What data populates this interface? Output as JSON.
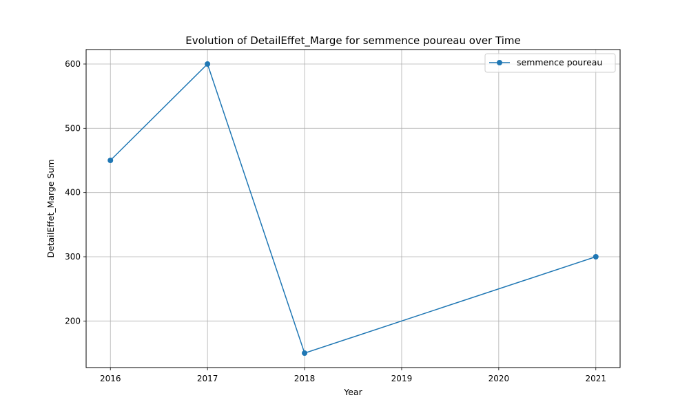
{
  "chart_data": {
    "type": "line",
    "title": "Evolution of DetailEffet_Marge for semmence poureau over Time",
    "xlabel": "Year",
    "ylabel": "DetailEffet_Marge Sum",
    "x": [
      2016,
      2017,
      2018,
      2021
    ],
    "xticks": [
      "2016",
      "2017",
      "2018",
      "2019",
      "2020",
      "2021"
    ],
    "yticks": [
      "200",
      "300",
      "400",
      "500",
      "600"
    ],
    "xlim": [
      2015.75,
      2021.25
    ],
    "ylim": [
      127.5,
      622.5
    ],
    "grid": true,
    "legend_position": "top-right",
    "series": [
      {
        "name": "semmence poureau",
        "values": [
          450,
          600,
          150,
          300
        ],
        "color": "#1f77b4",
        "marker": "circle"
      }
    ]
  }
}
